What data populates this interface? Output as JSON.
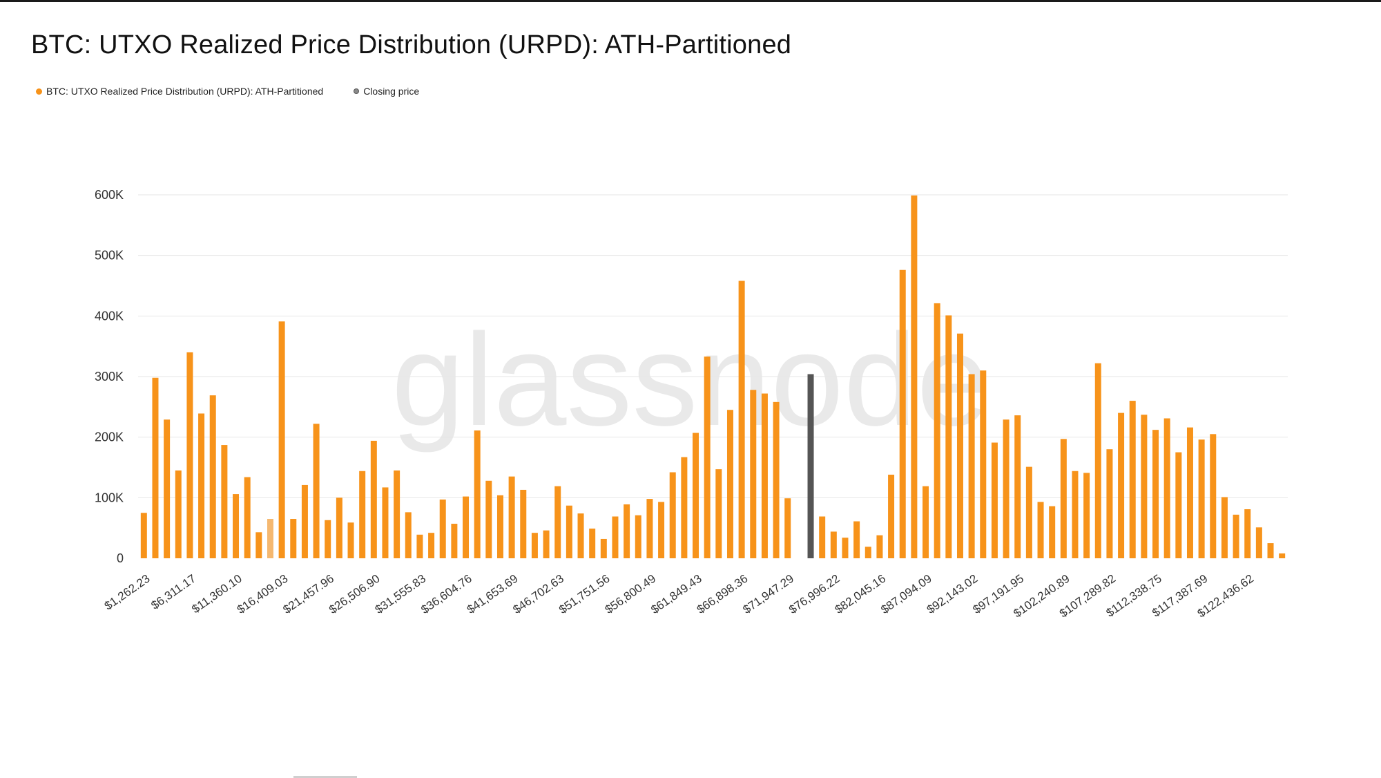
{
  "title": "BTC: UTXO Realized Price Distribution (URPD): ATH-Partitioned",
  "legend": [
    {
      "label": "BTC: UTXO Realized Price Distribution (URPD): ATH-Partitioned",
      "color": "#f7931a"
    },
    {
      "label": "Closing price",
      "color": "#555555"
    }
  ],
  "watermark": "glassnode",
  "colors": {
    "bar": "#f7931a",
    "bar_highlight": "#f5b870",
    "closing": "#555555",
    "grid": "#e6e6e6"
  },
  "chart_data": {
    "type": "bar",
    "title": "BTC: UTXO Realized Price Distribution (URPD): ATH-Partitioned",
    "xlabel": "",
    "ylabel": "",
    "ylim": [
      0,
      600000
    ],
    "yticks": [
      0,
      100000,
      200000,
      300000,
      400000,
      500000,
      600000
    ],
    "ytick_labels": [
      "0",
      "100K",
      "200K",
      "300K",
      "400K",
      "500K",
      "600K"
    ],
    "xtick_labels": [
      "$1,262.23",
      "$6,311.17",
      "$11,360.10",
      "$16,409.03",
      "$21,457.96",
      "$26,506.90",
      "$31,555.83",
      "$36,604.76",
      "$41,653.69",
      "$46,702.63",
      "$51,751.56",
      "$56,800.49",
      "$61,849.43",
      "$66,898.36",
      "$71,947.29",
      "$76,996.22",
      "$82,045.16",
      "$87,094.09",
      "$92,143.02",
      "$97,191.95",
      "$102,240.89",
      "$107,289.82",
      "$112,338.75",
      "$117,387.69",
      "$122,436.62"
    ],
    "xtick_every": 4,
    "closing_price_index": 58,
    "highlight_index": 11,
    "series": [
      {
        "name": "BTC: UTXO Realized Price Distribution (URPD): ATH-Partitioned",
        "values": [
          75000,
          298000,
          229000,
          145000,
          340000,
          239000,
          269000,
          187000,
          106000,
          134000,
          43000,
          65000,
          391000,
          65000,
          121000,
          222000,
          63000,
          100000,
          59000,
          144000,
          194000,
          117000,
          145000,
          76000,
          39000,
          42000,
          97000,
          57000,
          102000,
          211000,
          128000,
          104000,
          135000,
          113000,
          42000,
          46000,
          119000,
          87000,
          74000,
          49000,
          32000,
          69000,
          89000,
          71000,
          98000,
          93000,
          142000,
          167000,
          207000,
          333000,
          147000,
          245000,
          458000,
          278000,
          272000,
          258000,
          99000,
          0,
          304000,
          69000,
          44000,
          34000,
          61000,
          19000,
          38000,
          138000,
          476000,
          599000,
          119000,
          421000,
          401000,
          371000,
          304000,
          310000,
          191000,
          229000,
          236000,
          151000,
          93000,
          86000,
          197000,
          144000,
          141000,
          322000,
          180000,
          240000,
          260000,
          237000,
          212000,
          231000,
          175000,
          216000,
          196000,
          205000,
          101000,
          72000,
          81000,
          51000,
          25000,
          8000
        ]
      }
    ]
  }
}
